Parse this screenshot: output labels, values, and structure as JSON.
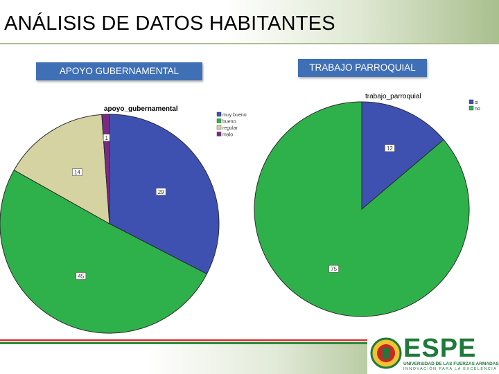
{
  "header": {
    "title": "ANÁLISIS DE DATOS HABITANTES"
  },
  "labels": {
    "left": "APOYO GUBERNAMENTAL",
    "right": "TRABAJO PARROQUIAL"
  },
  "logo": {
    "word": "ESPE",
    "subtitle": "UNIVERSIDAD DE LAS FUERZAS ARMADAS",
    "tagline": "INNOVACIÓN PARA LA EXCELENCIA"
  },
  "chart_data": [
    {
      "type": "pie",
      "title": "apoyo_gubernamental",
      "legend_position": "right",
      "slices": [
        {
          "label": "muy bueno",
          "value": 29,
          "color": "#3f51b0"
        },
        {
          "label": "bueno",
          "value": 45,
          "color": "#2eb14a"
        },
        {
          "label": "regular",
          "value": 14,
          "color": "#d6d3a3"
        },
        {
          "label": "malo",
          "value": 1,
          "color": "#7b2a84"
        }
      ]
    },
    {
      "type": "pie",
      "title": "trabajo_parroquial",
      "legend_position": "top-right",
      "slices": [
        {
          "label": "si",
          "value": 12,
          "color": "#3f51b0"
        },
        {
          "label": "no",
          "value": 75,
          "color": "#2eb14a"
        }
      ]
    }
  ]
}
